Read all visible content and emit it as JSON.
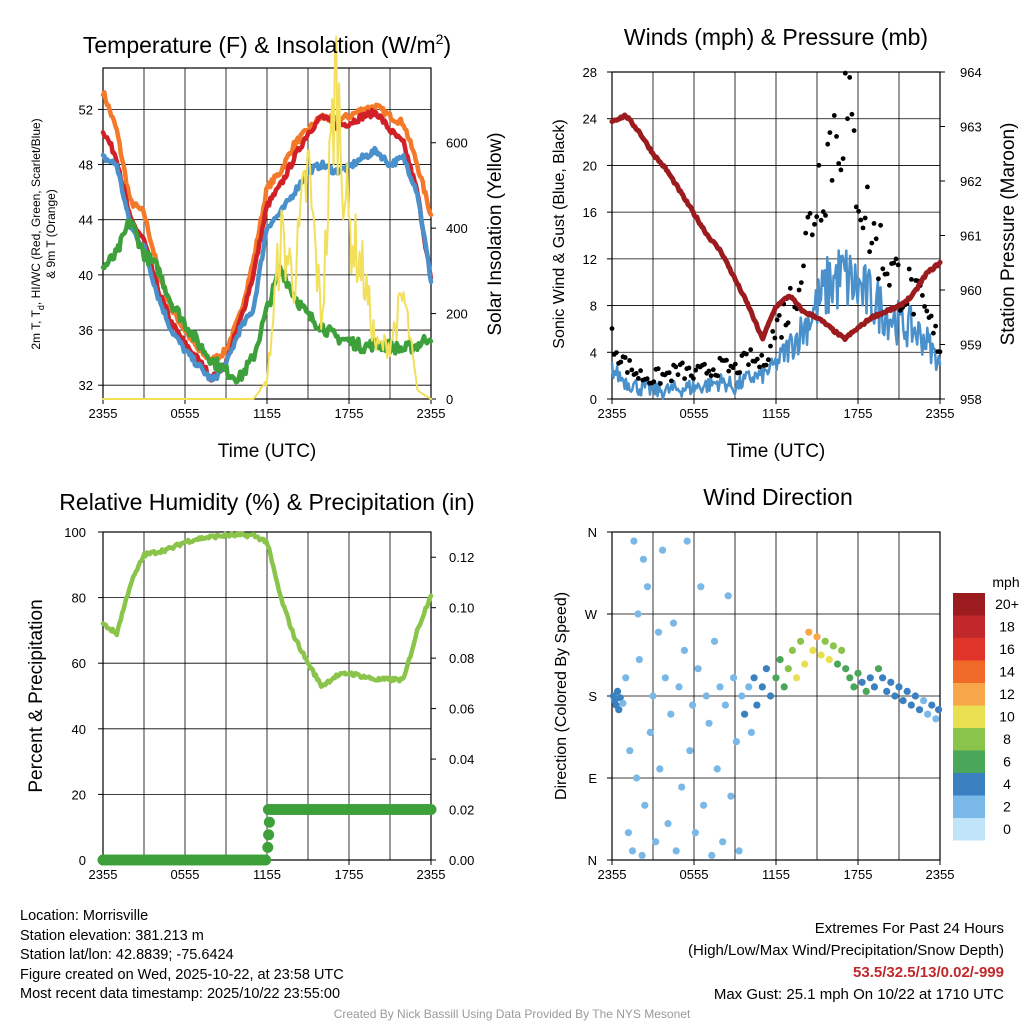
{
  "chart_data": [
    {
      "type": "line",
      "title": "Temperature (F) & Insolation (W/m²)",
      "title_main": "Temperature (F) & Insolation (W/m",
      "title_sup": "2",
      "title_end": ")",
      "xlabel": "Time (UTC)",
      "ylabel_line1": "2m T, T",
      "ylabel_sub": "d",
      "ylabel_line1b": ", HI/WC (Red, Green, Scarlet/Blue)",
      "ylabel_line2": "& 9m T (Orange)",
      "ylabel_right": "Solar Insolation (Yellow)",
      "x_ticks": [
        "2355",
        "0555",
        "1155",
        "1755",
        "2355"
      ],
      "ylim": [
        31,
        55
      ],
      "y_ticks": [
        32,
        36,
        40,
        44,
        48,
        52
      ],
      "ylim_right": [
        0,
        775
      ],
      "y_ticks_right": [
        0,
        200,
        400,
        600
      ],
      "x_hours": [
        0,
        1,
        2,
        3,
        4,
        5,
        6,
        7,
        8,
        9,
        10,
        11,
        12,
        13,
        14,
        15,
        16,
        17,
        18,
        19,
        20,
        21,
        22,
        23,
        24
      ],
      "series": [
        {
          "name": "9m T",
          "color": "#f47a2a",
          "values": [
            53.3,
            50.5,
            45.3,
            44.5,
            40.5,
            37.5,
            36.0,
            34.5,
            33.8,
            34.5,
            37.0,
            41.0,
            46.3,
            47.5,
            49.5,
            50.5,
            51.5,
            51.2,
            51.5,
            52.0,
            52.2,
            51.5,
            51.0,
            48.0,
            44.3
          ]
        },
        {
          "name": "2m T",
          "color": "#d12027",
          "values": [
            50.5,
            48.5,
            44.0,
            42.5,
            39.0,
            36.5,
            35.0,
            33.8,
            32.5,
            33.6,
            36.5,
            40.0,
            45.0,
            46.5,
            48.5,
            50.3,
            51.5,
            50.8,
            51.0,
            51.5,
            51.8,
            50.5,
            49.5,
            46.0,
            39.6
          ]
        },
        {
          "name": "HI/WC",
          "color": "#4a90cb",
          "values": [
            48.5,
            48.0,
            43.5,
            42.0,
            38.5,
            36.0,
            34.5,
            33.4,
            32.3,
            33.5,
            36.0,
            37.5,
            43.5,
            44.5,
            46.0,
            47.5,
            48.0,
            47.5,
            47.8,
            48.5,
            49.0,
            48.0,
            48.5,
            46.0,
            39.6
          ]
        },
        {
          "name": "Td",
          "color": "#3da03a",
          "values": [
            40.5,
            41.5,
            44.0,
            41.5,
            40.5,
            38.0,
            36.5,
            35.0,
            33.8,
            33.0,
            32.5,
            34.0,
            37.5,
            40.5,
            38.5,
            37.0,
            36.3,
            35.5,
            35.2,
            34.8,
            35.0,
            34.8,
            34.6,
            34.9,
            35.6
          ]
        },
        {
          "name": "Solar Insolation",
          "color": "#f2df5a",
          "axis": "right",
          "values": [
            0,
            0,
            0,
            0,
            0,
            0,
            0,
            0,
            0,
            0,
            0,
            0,
            40,
            380,
            280,
            540,
            180,
            760,
            400,
            300,
            120,
            130,
            240,
            20,
            0
          ]
        }
      ]
    },
    {
      "type": "line",
      "title": "Winds (mph) & Pressure (mb)",
      "xlabel": "Time (UTC)",
      "ylabel": "Sonic Wind & Gust (Blue, Black)",
      "ylabel_right": "Station Pressure (Maroon)",
      "x_ticks": [
        "2355",
        "0555",
        "1155",
        "1755",
        "2355"
      ],
      "ylim": [
        0,
        28
      ],
      "y_ticks": [
        0,
        4,
        8,
        12,
        16,
        20,
        24,
        28
      ],
      "ylim_right": [
        958,
        964
      ],
      "y_ticks_right": [
        958,
        959,
        960,
        961,
        962,
        963,
        964
      ],
      "x_hours": [
        0,
        1,
        2,
        3,
        4,
        5,
        6,
        7,
        8,
        9,
        10,
        11,
        12,
        13,
        14,
        15,
        16,
        17,
        18,
        19,
        20,
        21,
        22,
        23,
        24
      ],
      "series": [
        {
          "name": "Station Pressure",
          "color": "#9b1b1e",
          "axis": "right",
          "values": [
            963.1,
            963.2,
            962.9,
            962.5,
            962.2,
            961.8,
            961.4,
            961.0,
            960.7,
            960.2,
            959.7,
            959.1,
            959.7,
            959.9,
            959.6,
            959.5,
            959.3,
            959.1,
            959.3,
            959.5,
            959.6,
            959.7,
            959.9,
            960.3,
            960.5
          ]
        },
        {
          "name": "Sonic Wind",
          "color": "#4a90cb",
          "values": [
            2.5,
            1.5,
            1.0,
            0.8,
            0.7,
            0.9,
            1.0,
            1.2,
            1.5,
            1.0,
            1.8,
            2.0,
            3.0,
            4.5,
            6.0,
            8.0,
            10.0,
            10.5,
            9.5,
            8.5,
            7.5,
            6.5,
            6.0,
            5.0,
            3.0
          ]
        },
        {
          "name": "Gust",
          "color": "#000000",
          "values": [
            5.0,
            3.0,
            2.0,
            1.8,
            2.0,
            2.5,
            2.0,
            2.5,
            2.8,
            2.5,
            3.5,
            3.0,
            6.0,
            8.0,
            12.0,
            18.0,
            22.0,
            25.1,
            19.0,
            14.0,
            12.0,
            10.0,
            9.0,
            7.0,
            4.5
          ]
        }
      ]
    },
    {
      "type": "line",
      "title": "Relative Humidity (%) & Precipitation (in)",
      "xlabel": "",
      "ylabel": "Percent & Precipitation",
      "x_ticks": [
        "2355",
        "0555",
        "1155",
        "1755",
        "2355"
      ],
      "ylim": [
        0,
        100
      ],
      "y_ticks": [
        0,
        20,
        40,
        60,
        80,
        100
      ],
      "ylim_right": [
        0,
        0.13
      ],
      "y_ticks_right": [
        "0.00",
        "0.02",
        "0.04",
        "0.06",
        "0.08",
        "0.10",
        "0.12"
      ],
      "x_hours": [
        0,
        1,
        2,
        3,
        4,
        5,
        6,
        7,
        8,
        9,
        10,
        11,
        12,
        13,
        14,
        15,
        16,
        17,
        18,
        19,
        20,
        21,
        22,
        23,
        24
      ],
      "series": [
        {
          "name": "Relative Humidity",
          "color": "#8bc44a",
          "values": [
            72,
            69,
            84,
            93,
            94,
            95,
            97,
            98,
            98.5,
            99,
            99,
            99,
            97,
            80,
            68,
            60,
            53,
            56,
            57,
            56,
            55,
            55,
            55,
            70,
            81
          ]
        },
        {
          "name": "Precipitation",
          "color": "#3da03a",
          "axis": "right",
          "values": [
            0,
            0,
            0,
            0,
            0,
            0,
            0,
            0,
            0,
            0,
            0,
            0,
            0.02,
            0.02,
            0.02,
            0.02,
            0.02,
            0.02,
            0.02,
            0.02,
            0.02,
            0.02,
            0.02,
            0.02,
            0.02
          ]
        }
      ]
    },
    {
      "type": "scatter",
      "title": "Wind Direction",
      "ylabel": "Direction (Colored By Speed)",
      "x_ticks": [
        "2355",
        "0555",
        "1155",
        "1755",
        "2355"
      ],
      "y_ticks": [
        "N",
        "E",
        "S",
        "W",
        "N"
      ],
      "ylim": [
        0,
        360
      ],
      "legend_title": "mph",
      "legend_labels": [
        "20+",
        "18",
        "16",
        "14",
        "12",
        "10",
        "8",
        "6",
        "4",
        "2",
        "0"
      ],
      "legend_colors": [
        "#9b1b1e",
        "#c0282b",
        "#e0342b",
        "#f06a2a",
        "#f7a64a",
        "#e8e050",
        "#8bc44a",
        "#4aa75a",
        "#3b80c0",
        "#7ab8e8",
        "#bfe4f8"
      ],
      "points": [
        [
          0.1,
          180,
          4
        ],
        [
          0.2,
          175,
          3
        ],
        [
          0.3,
          170,
          4
        ],
        [
          0.4,
          185,
          3
        ],
        [
          0.5,
          165,
          4
        ],
        [
          0.6,
          178,
          3
        ],
        [
          0.8,
          172,
          2
        ],
        [
          1.0,
          200,
          2
        ],
        [
          1.2,
          30,
          1
        ],
        [
          1.3,
          120,
          1
        ],
        [
          1.5,
          10,
          1
        ],
        [
          1.6,
          350,
          1
        ],
        [
          1.8,
          90,
          1
        ],
        [
          1.9,
          270,
          2
        ],
        [
          2.0,
          220,
          1
        ],
        [
          2.2,
          5,
          1
        ],
        [
          2.3,
          330,
          1
        ],
        [
          2.4,
          60,
          1
        ],
        [
          2.6,
          300,
          1
        ],
        [
          2.8,
          140,
          1
        ],
        [
          3.0,
          180,
          2
        ],
        [
          3.2,
          20,
          1
        ],
        [
          3.4,
          250,
          1
        ],
        [
          3.5,
          100,
          1
        ],
        [
          3.7,
          340,
          1
        ],
        [
          3.9,
          200,
          1
        ],
        [
          4.1,
          40,
          1
        ],
        [
          4.3,
          160,
          1
        ],
        [
          4.5,
          260,
          1
        ],
        [
          4.7,
          10,
          1
        ],
        [
          4.9,
          190,
          2
        ],
        [
          5.1,
          80,
          1
        ],
        [
          5.3,
          230,
          1
        ],
        [
          5.5,
          350,
          1
        ],
        [
          5.7,
          120,
          1
        ],
        [
          5.9,
          170,
          2
        ],
        [
          6.1,
          30,
          1
        ],
        [
          6.3,
          210,
          1
        ],
        [
          6.5,
          300,
          1
        ],
        [
          6.7,
          60,
          1
        ],
        [
          6.9,
          180,
          2
        ],
        [
          7.1,
          150,
          1
        ],
        [
          7.3,
          5,
          1
        ],
        [
          7.5,
          240,
          1
        ],
        [
          7.7,
          100,
          1
        ],
        [
          7.9,
          190,
          2
        ],
        [
          8.1,
          20,
          1
        ],
        [
          8.3,
          170,
          2
        ],
        [
          8.5,
          290,
          1
        ],
        [
          8.7,
          70,
          1
        ],
        [
          8.9,
          200,
          2
        ],
        [
          9.1,
          130,
          1
        ],
        [
          9.3,
          10,
          1
        ],
        [
          9.5,
          180,
          2
        ],
        [
          9.7,
          160,
          3
        ],
        [
          10.0,
          190,
          2
        ],
        [
          10.2,
          140,
          2
        ],
        [
          10.4,
          200,
          3
        ],
        [
          10.6,
          170,
          4
        ],
        [
          11.0,
          190,
          4
        ],
        [
          11.3,
          210,
          4
        ],
        [
          11.6,
          180,
          4
        ],
        [
          12.0,
          200,
          5
        ],
        [
          12.3,
          220,
          6
        ],
        [
          12.6,
          190,
          5
        ],
        [
          12.9,
          210,
          7
        ],
        [
          13.2,
          230,
          8
        ],
        [
          13.5,
          200,
          9
        ],
        [
          13.8,
          240,
          8
        ],
        [
          14.1,
          215,
          10
        ],
        [
          14.4,
          250,
          11
        ],
        [
          14.7,
          230,
          9
        ],
        [
          15.0,
          245,
          12
        ],
        [
          15.3,
          225,
          10
        ],
        [
          15.6,
          240,
          8
        ],
        [
          15.9,
          220,
          9
        ],
        [
          16.2,
          235,
          7
        ],
        [
          16.5,
          215,
          6
        ],
        [
          16.8,
          230,
          7
        ],
        [
          17.1,
          210,
          6
        ],
        [
          17.4,
          200,
          5
        ],
        [
          17.7,
          190,
          6
        ],
        [
          18.0,
          205,
          5
        ],
        [
          18.3,
          195,
          4
        ],
        [
          18.6,
          185,
          5
        ],
        [
          18.9,
          200,
          4
        ],
        [
          19.2,
          190,
          4
        ],
        [
          19.5,
          210,
          5
        ],
        [
          19.8,
          200,
          4
        ],
        [
          20.1,
          185,
          3
        ],
        [
          20.4,
          195,
          4
        ],
        [
          20.7,
          180,
          3
        ],
        [
          21.0,
          190,
          4
        ],
        [
          21.3,
          175,
          3
        ],
        [
          21.6,
          185,
          3
        ],
        [
          21.9,
          170,
          3
        ],
        [
          22.2,
          180,
          3
        ],
        [
          22.5,
          165,
          3
        ],
        [
          22.8,
          175,
          2
        ],
        [
          23.1,
          160,
          2
        ],
        [
          23.4,
          170,
          3
        ],
        [
          23.7,
          155,
          2
        ],
        [
          23.9,
          165,
          3
        ]
      ]
    }
  ],
  "footer_left": {
    "location": "Location: Morrisville",
    "elevation": "Station elevation: 381.213 m",
    "latlon": "Station lat/lon: 42.8839; -75.6424",
    "created": "Figure created on Wed, 2025-10-22, at 23:58 UTC",
    "recent": "Most recent data timestamp: 2025/10/22 23:55:00"
  },
  "footer_right": {
    "heading": "Extremes For Past 24 Hours",
    "legend": "(High/Low/Max Wind/Precipitation/Snow Depth)",
    "values": "53.5/32.5/13/0.02/-999",
    "gust": "Max Gust: 25.1 mph On 10/22 at 1710 UTC"
  },
  "credit": "Created By Nick Bassill Using Data Provided By The NYS Mesonet"
}
